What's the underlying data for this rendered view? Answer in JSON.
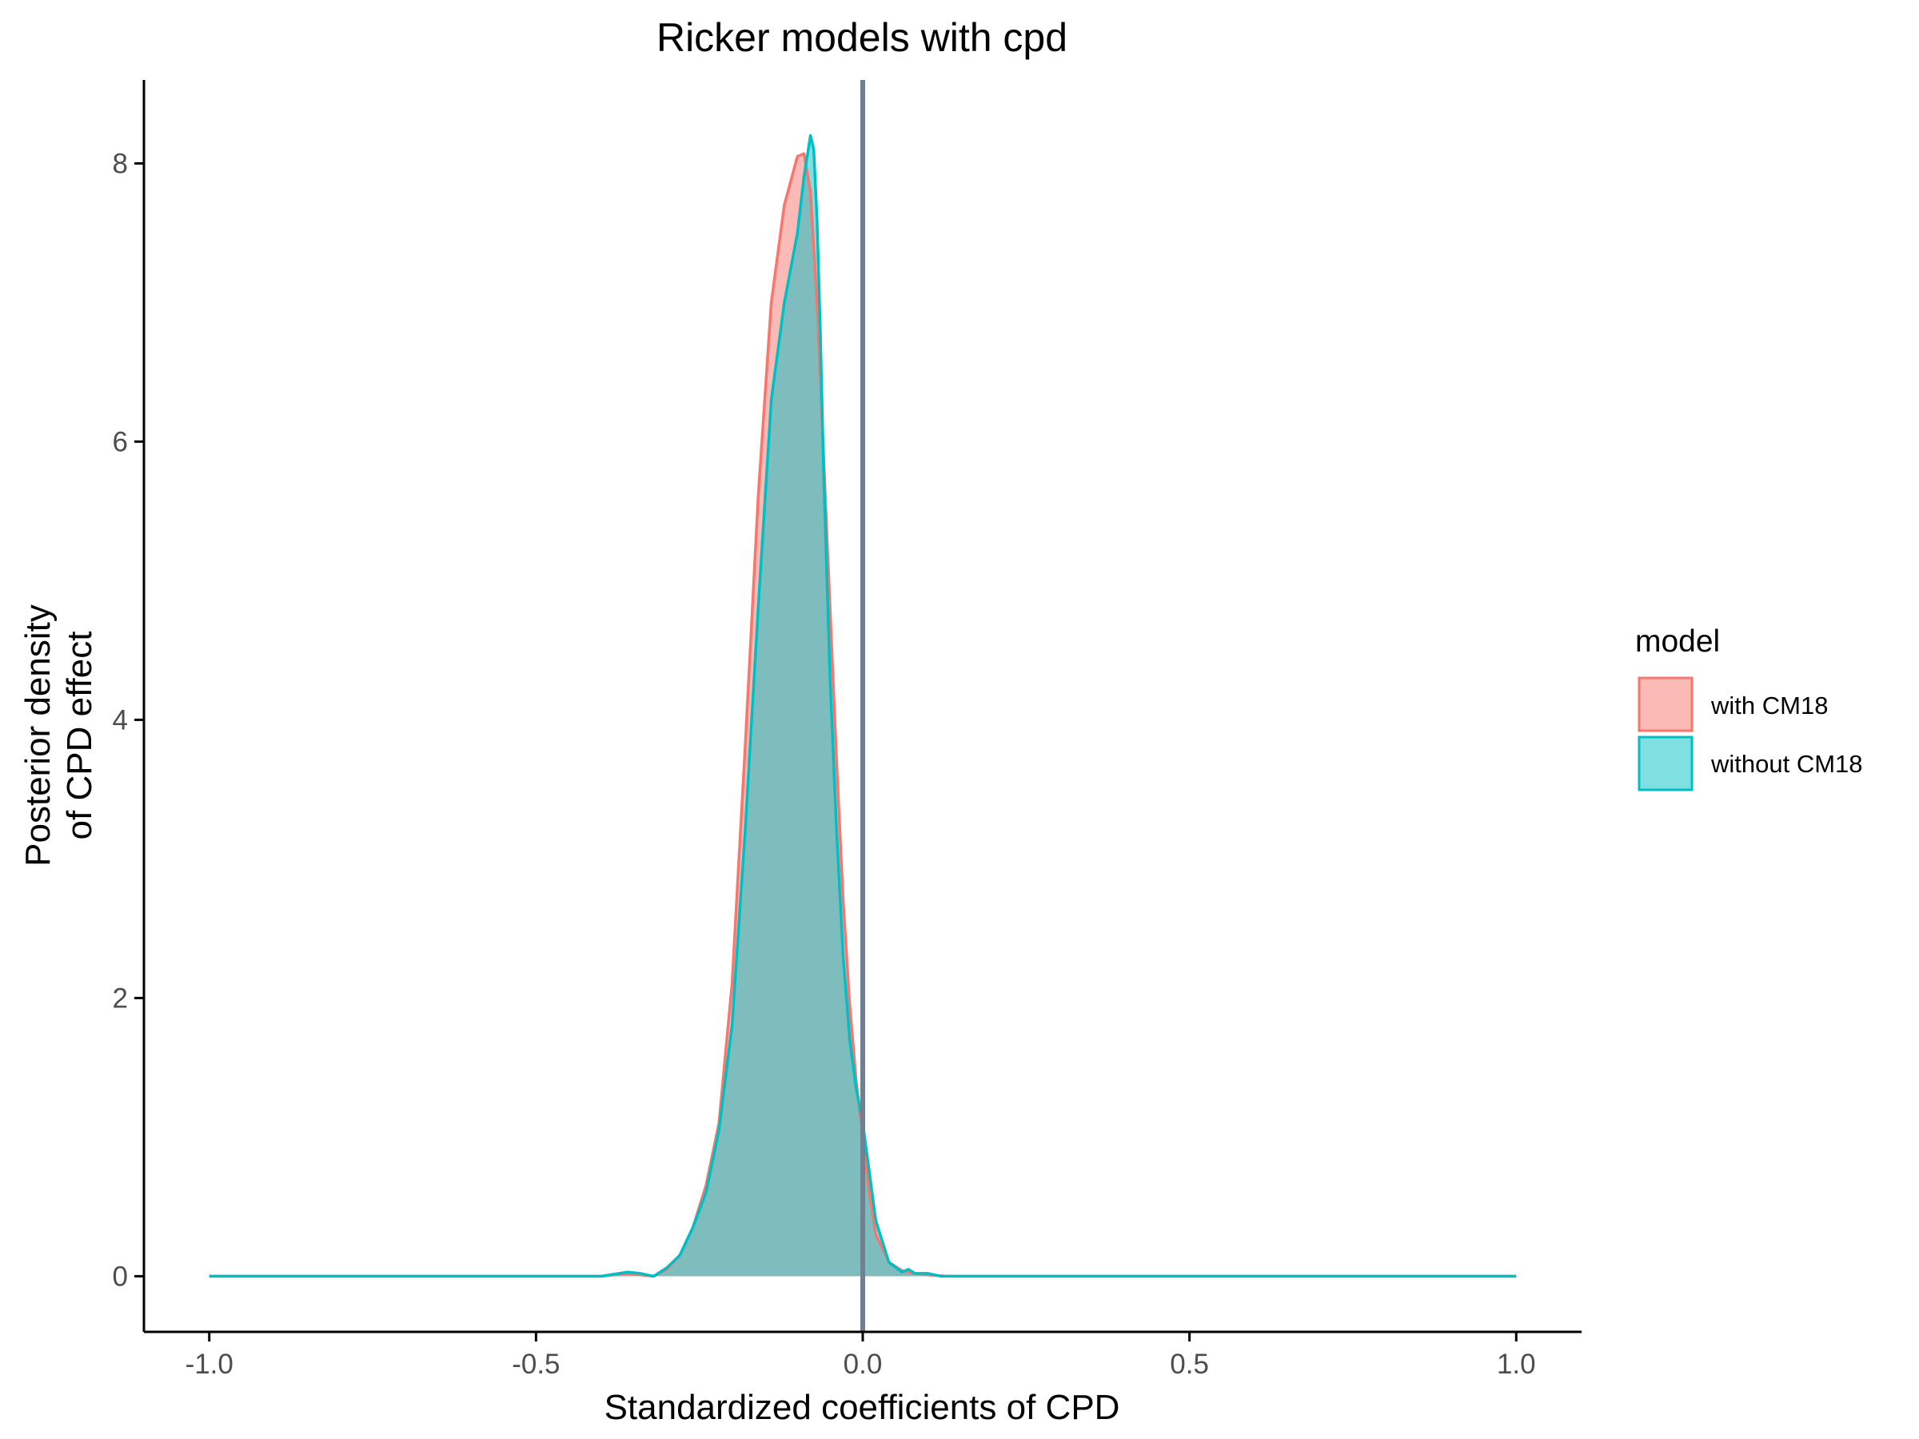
{
  "chart_data": {
    "type": "area",
    "title": "Ricker models with cpd",
    "xlabel": "Standardized coefficients of CPD",
    "ylabel": [
      "Posterior density",
      "of CPD effect"
    ],
    "xlim": [
      -1.1,
      1.1
    ],
    "ylim": [
      -0.4,
      8.6
    ],
    "x_ticks": [
      -1.0,
      -0.5,
      0.0,
      0.5,
      1.0
    ],
    "x_tick_labels": [
      "-1.0",
      "-0.5",
      "0.0",
      "0.5",
      "1.0"
    ],
    "y_ticks": [
      0,
      2,
      4,
      6,
      8
    ],
    "y_tick_labels": [
      "0",
      "2",
      "4",
      "6",
      "8"
    ],
    "vline": {
      "x": 0.0,
      "color": "#708090"
    },
    "grid": false,
    "legend": {
      "title": "model",
      "placement": "right"
    },
    "series": [
      {
        "name": "with CM18",
        "color": "#F8766D",
        "fill": "#F8766D",
        "x": [
          -1.0,
          -0.4,
          -0.36,
          -0.34,
          -0.32,
          -0.3,
          -0.28,
          -0.26,
          -0.24,
          -0.22,
          -0.2,
          -0.18,
          -0.16,
          -0.14,
          -0.12,
          -0.1,
          -0.09,
          -0.08,
          -0.07,
          -0.06,
          -0.05,
          -0.04,
          -0.03,
          -0.02,
          -0.01,
          0.0,
          0.01,
          0.02,
          0.04,
          0.06,
          0.08,
          0.1,
          0.13,
          0.15,
          1.0
        ],
        "y": [
          0,
          0,
          0.02,
          0.01,
          0.0,
          0.05,
          0.15,
          0.35,
          0.65,
          1.1,
          2.1,
          3.8,
          5.6,
          7.0,
          7.7,
          8.05,
          8.07,
          7.8,
          7.0,
          5.9,
          4.8,
          3.7,
          2.7,
          1.95,
          1.4,
          1.0,
          0.6,
          0.3,
          0.1,
          0.04,
          0.02,
          0.01,
          0.0,
          0.0,
          0
        ]
      },
      {
        "name": "without CM18",
        "color": "#00BFC4",
        "fill": "#00BFC4",
        "x": [
          -1.0,
          -0.4,
          -0.36,
          -0.34,
          -0.32,
          -0.3,
          -0.28,
          -0.26,
          -0.24,
          -0.22,
          -0.2,
          -0.18,
          -0.16,
          -0.14,
          -0.12,
          -0.1,
          -0.09,
          -0.085,
          -0.08,
          -0.075,
          -0.07,
          -0.065,
          -0.06,
          -0.05,
          -0.04,
          -0.03,
          -0.02,
          -0.01,
          0.0,
          0.01,
          0.02,
          0.04,
          0.06,
          0.07,
          0.08,
          0.1,
          0.12,
          0.15,
          1.0
        ],
        "y": [
          0,
          0,
          0.03,
          0.02,
          0.0,
          0.06,
          0.15,
          0.35,
          0.6,
          1.05,
          1.8,
          3.2,
          4.8,
          6.3,
          7.0,
          7.5,
          7.9,
          8.05,
          8.2,
          8.1,
          7.6,
          6.8,
          5.8,
          4.3,
          3.2,
          2.3,
          1.7,
          1.35,
          1.1,
          0.75,
          0.4,
          0.1,
          0.03,
          0.05,
          0.02,
          0.02,
          0.0,
          0.0,
          0
        ]
      }
    ]
  }
}
